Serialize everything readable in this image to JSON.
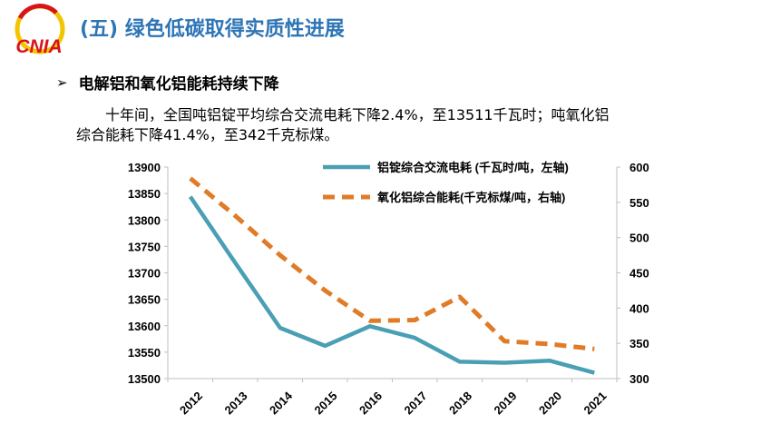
{
  "header": {
    "logo_text": "CNIA",
    "section_title": "(五) 绿色低碳取得实质性进展"
  },
  "bullet": {
    "arrow": "➢",
    "heading": "电解铝和氧化铝能耗持续下降"
  },
  "paragraph": {
    "line1": "十年间，全国吨铝锭平均综合交流电耗下降2.4%，至13511千瓦时；吨氧化铝",
    "line2": "综合能耗下降41.4%，至342千克标煤。"
  },
  "colors": {
    "title": "#2e75b6",
    "series1": "#4a9fb5",
    "series2": "#e07b28",
    "logo_red": "#d7141a",
    "logo_yellow": "#f5c400"
  },
  "chart_data": {
    "type": "line",
    "categories": [
      "2012",
      "2013",
      "2014",
      "2015",
      "2016",
      "2017",
      "2018",
      "2019",
      "2020",
      "2021"
    ],
    "y_left": {
      "min": 13500,
      "max": 13900,
      "ticks": [
        "13500",
        "13550",
        "13600",
        "13650",
        "13700",
        "13750",
        "13800",
        "13850",
        "13900"
      ]
    },
    "y_right": {
      "min": 300,
      "max": 600,
      "ticks": [
        "300",
        "350",
        "400",
        "450",
        "500",
        "550",
        "600"
      ]
    },
    "series": [
      {
        "name": "铝锭综合交流电耗 (千瓦时/吨，左轴)",
        "axis": "left",
        "style": "solid",
        "values": [
          13844,
          13719,
          13596,
          13562,
          13599,
          13577,
          13532,
          13530,
          13534,
          13511
        ]
      },
      {
        "name": "氧化铝综合能耗(千克标煤/吨，右轴)",
        "axis": "right",
        "style": "dashed",
        "values": [
          584,
          531,
          475,
          425,
          382,
          383,
          416,
          353,
          349,
          342
        ]
      }
    ],
    "legend_position": "top-center",
    "grid": false
  }
}
